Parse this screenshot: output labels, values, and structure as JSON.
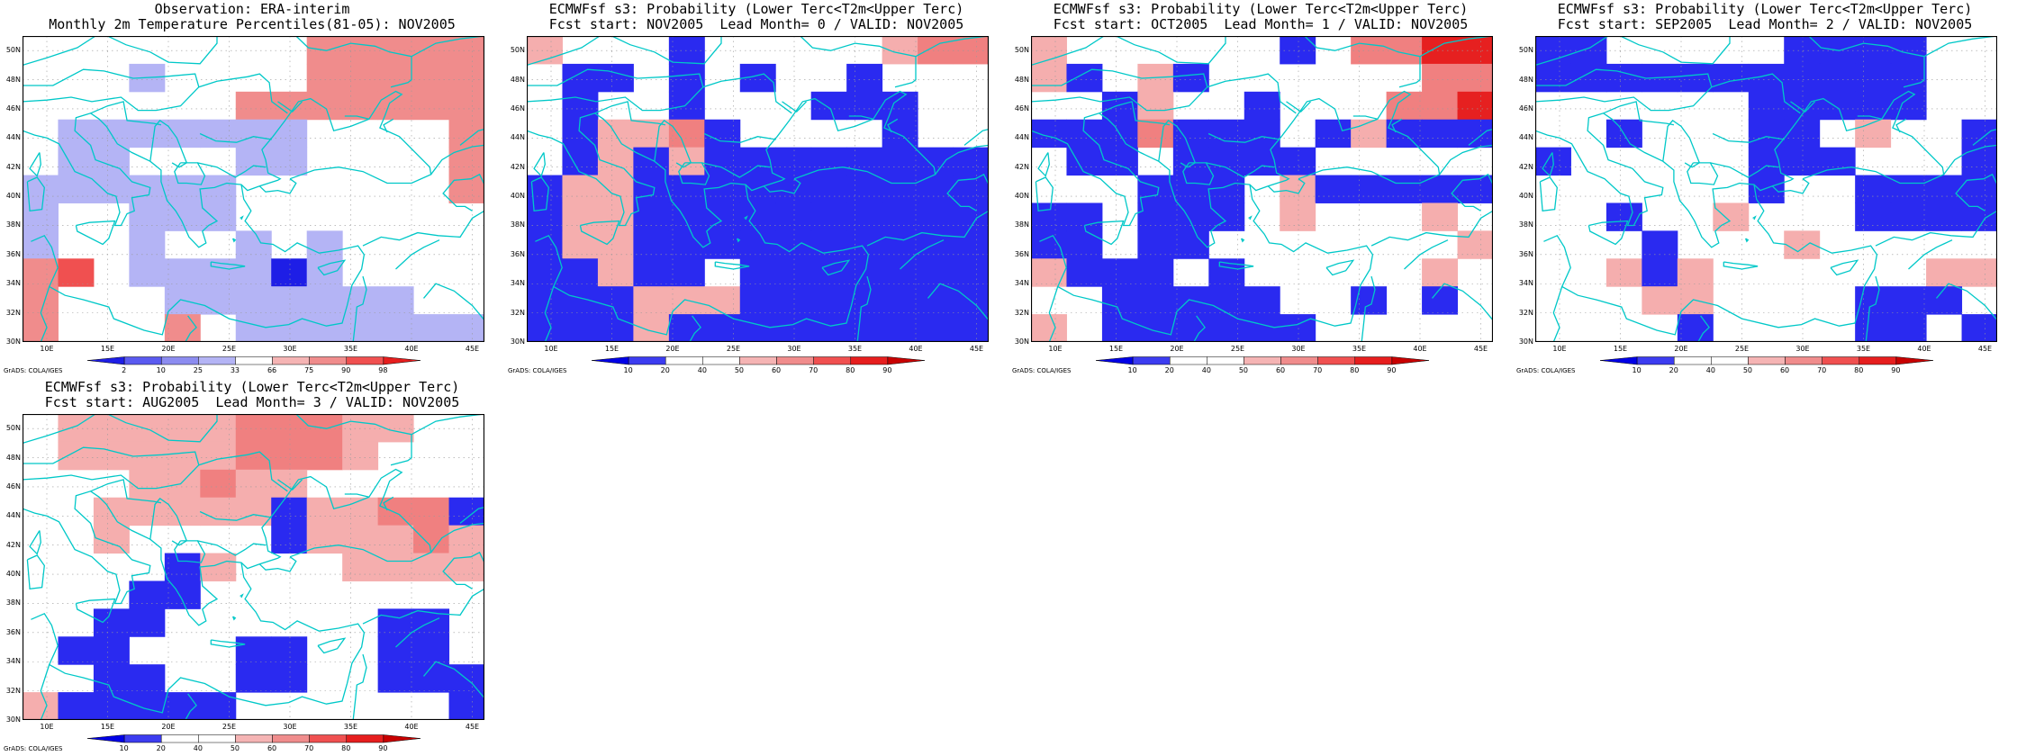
{
  "lat_labels": [
    "50N",
    "48N",
    "46N",
    "44N",
    "42N",
    "40N",
    "38N",
    "36N",
    "34N",
    "32N",
    "30N"
  ],
  "lon_labels": [
    "10E",
    "15E",
    "20E",
    "25E",
    "30E",
    "35E",
    "40E",
    "45E"
  ],
  "grads_credit": "GrADS: COLA/IGES",
  "coast_color": "#00c8c8",
  "colorbars": {
    "obs": {
      "colors": [
        "#1e1ee6",
        "#5a5af0",
        "#8c8cf0",
        "#b4b4f5",
        "#ffffff",
        "#f5b4b4",
        "#f08c8c",
        "#f05050",
        "#e61e1e"
      ],
      "labels": [
        "2",
        "10",
        "25",
        "33",
        "66",
        "75",
        "90",
        "98"
      ]
    },
    "prob": {
      "colors": [
        "#0000e6",
        "#3c3cf0",
        "#ffffff",
        "#ffffff",
        "#f5b4b4",
        "#f08c8c",
        "#f05050",
        "#e61e1e",
        "#c80000"
      ],
      "labels": [
        "10",
        "20",
        "40",
        "50",
        "60",
        "70",
        "80",
        "90"
      ]
    }
  },
  "panels": [
    {
      "title1": "Observation: ERA-interim",
      "title2": "Monthly 2m Temperature Percentiles(81-05): NOV2005",
      "colorbar": "obs",
      "grid": [
        "........UUUUU",
        "...L....UUUUU",
        "......UUUUUUU",
        ".LLLLLLL....U",
        ".LL...LL....U",
        "LLLLLL......U",
        "L..LLL.......",
        "L..L..L.L....",
        "UR.LLLLXL....",
        "U...LLLLLLL..",
        "U...U.LLLLLLL"
      ]
    },
    {
      "title1": "ECMWFsf s3: Probability (Lower Terc<T2m<Upper Terc)",
      "title2": "Fcst start: NOV2005  Lead Month= 0 / VALID: NOV2005",
      "colorbar": "prob",
      "grid": [
        "p...B.....pUU",
        ".BB.B.B..B...",
        ".B..B...BBB..",
        ".BppUB....B..",
        ".BpBpBBBBBBBB",
        "BppBBBBBBBBBB",
        "BppBBBBBBBBBB",
        "BppBBBBBBBBBB",
        "BBpBB.BBBBBBB",
        "BBBpppBBBBBBB",
        "BBBpBBBBBBBBB"
      ]
    },
    {
      "title1": "ECMWFsf s3: Probability (Lower Terc<T2m<Upper Terc)",
      "title2": "Fcst start: OCT2005  Lead Month= 1 / VALID: NOV2005",
      "colorbar": "prob",
      "grid": [
        "p......B.UURR",
        "pB.pB......UU",
        "..Bp..B...UUR",
        "BBBUBBB.BpBBB",
        ".BB.BBBB.....",
        "...BBB.pBBBBB",
        "BB.BBB.p...p.",
        "BB.BB.......p",
        "pBBB.B.....p.",
        "..BBBBB..B.B.",
        "p.BBBBBB....."
      ]
    },
    {
      "title1": "ECMWFsf s3: Probability (Lower Terc<T2m<Upper Terc)",
      "title2": "Fcst start: SEP2005  Lead Month= 2 / VALID: NOV2005",
      "colorbar": "prob",
      "grid": [
        "BB.....BBBB..",
        "BBBBBBBBBBB..",
        "......BBBBB..",
        "..B...BB.p..B",
        "B.....BBB...B",
        "......B..BBBB",
        "..B..p...BBBB",
        "...B...p.....",
        "..pBp......pp",
        "...pp....BBB.",
        "....B....BB.B"
      ]
    },
    {
      "title1": "ECMWFsf s3: Probability (Lower Terc<T2m<Upper Terc)",
      "title2": "Fcst start: AUG2005  Lead Month= 3 / VALID: NOV2005",
      "colorbar": "prob",
      "grid": [
        ".pppppUUUpp..",
        ".pppppUUUp...",
        "...ppUpp.....",
        "..pppppBppUUB",
        "..p....BpppUp",
        "....Bp...pppp",
        "...BB........",
        "..BB......BB.",
        ".BB...BB..BB.",
        "..BB..BB..BBB",
        "pBBBBB......B"
      ]
    }
  ]
}
